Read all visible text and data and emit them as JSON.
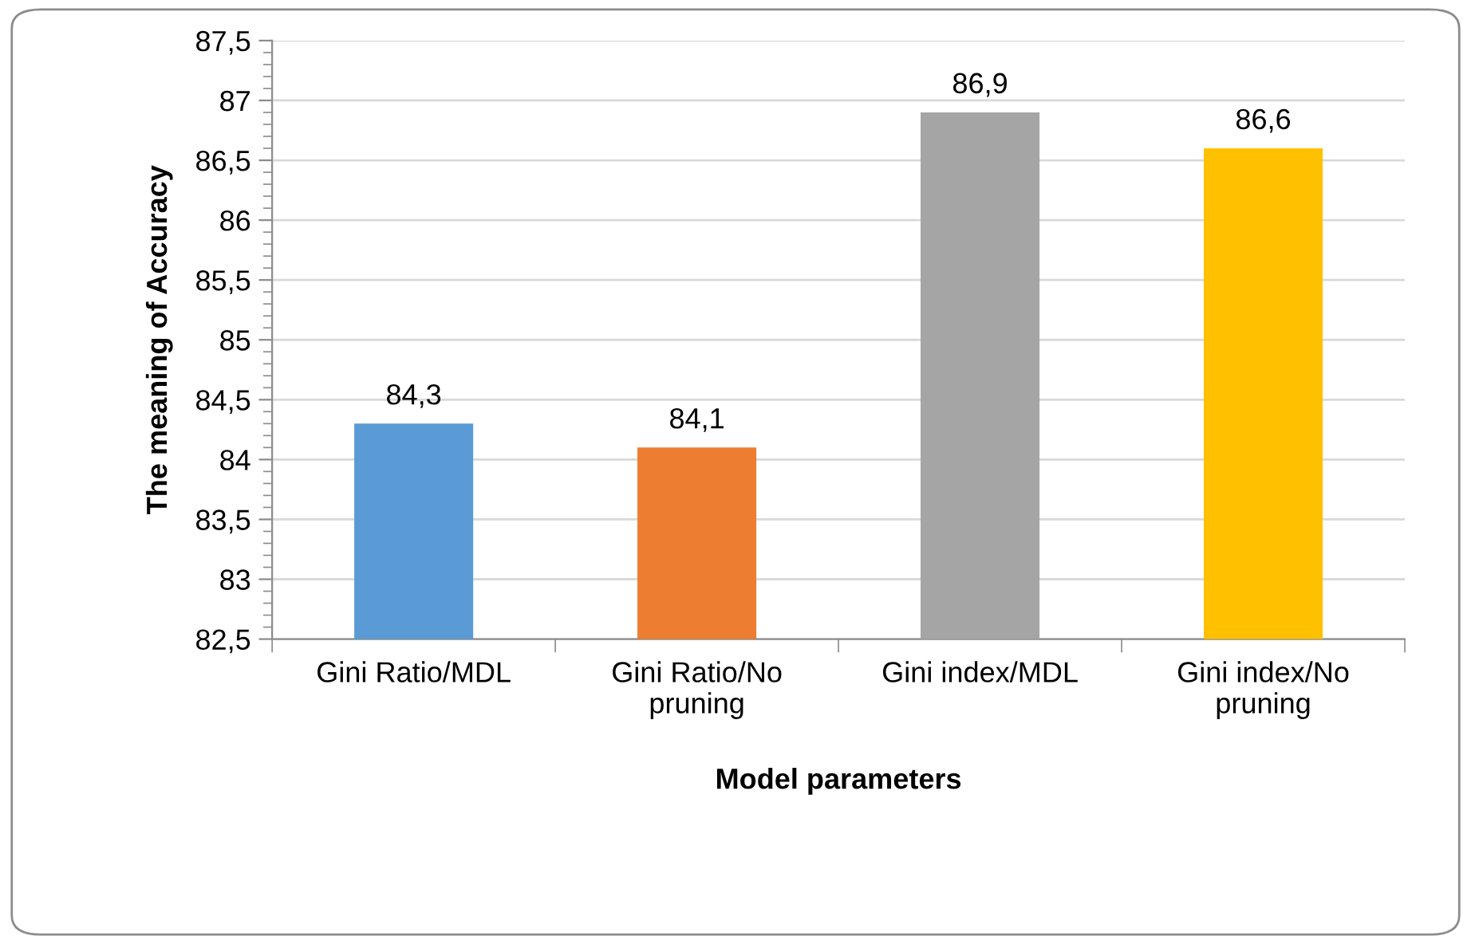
{
  "chart_data": {
    "type": "bar",
    "xlabel": "Model parameters",
    "ylabel": "The meaning of Accuracy",
    "categories": [
      "Gini Ratio/MDL",
      "Gini Ratio/No\npruning",
      "Gini index/MDL",
      "Gini index/No\npruning"
    ],
    "values": [
      84.3,
      84.1,
      86.9,
      86.6
    ],
    "colors": [
      "#5b9bd5",
      "#ed7d31",
      "#a5a5a5",
      "#ffc000"
    ],
    "value_labels": [
      "84,3",
      "84,1",
      "86,9",
      "86,6"
    ],
    "ylim": [
      82.5,
      87.5
    ],
    "yticks": [
      {
        "value": 82.5,
        "label": "82,5"
      },
      83,
      {
        "value": 83.5,
        "label": "83,5"
      },
      84,
      {
        "value": 84.5,
        "label": "84,5"
      },
      85,
      {
        "value": 85.5,
        "label": "85,5"
      },
      86,
      {
        "value": 86.5,
        "label": "86,5"
      },
      87,
      {
        "value": 87.5,
        "label": "87,5"
      }
    ],
    "grid": "y",
    "legend": false
  }
}
